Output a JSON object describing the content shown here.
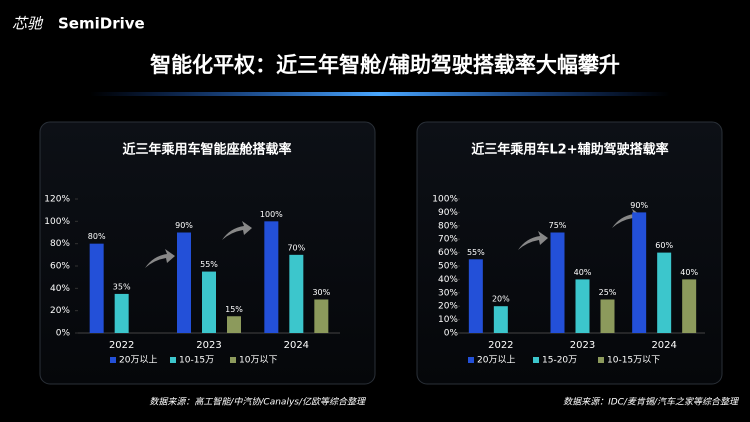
{
  "header": {
    "logo_cn": "芯驰",
    "logo_en": "SemiDrive",
    "title": "智能化平权：近三年智舱/辅助驾驶搭载率大幅攀升"
  },
  "chart_data": [
    {
      "type": "bar",
      "title": "近三年乘用车智能座舱搭载率",
      "categories": [
        "2022",
        "2023",
        "2024"
      ],
      "series": [
        {
          "name": "20万以上",
          "color": "#2350d8",
          "values": [
            80,
            90,
            100
          ],
          "value_labels": [
            "80%",
            "90%",
            "100%"
          ]
        },
        {
          "name": "10-15万",
          "color": "#3cc6cc",
          "values": [
            35,
            55,
            70
          ],
          "value_labels": [
            "35%",
            "55%",
            "70%"
          ]
        },
        {
          "name": "10万以下",
          "color": "#8c9a5c",
          "values": [
            null,
            15,
            30
          ],
          "value_labels": [
            null,
            "15%",
            "30%"
          ]
        }
      ],
      "ylim": [
        0,
        120
      ],
      "yticks": [
        {
          "value": 0,
          "label": "0%"
        },
        {
          "value": 20,
          "label": "20%"
        },
        {
          "value": 40,
          "label": "40%"
        },
        {
          "value": 60,
          "label": "60%"
        },
        {
          "value": 80,
          "label": "80%"
        },
        {
          "value": 100,
          "label": "100%"
        },
        {
          "value": 120,
          "label": "120%"
        }
      ],
      "grid": false,
      "source": "数据来源：高工智能/中汽协/Canalys/亿欧等综合整理"
    },
    {
      "type": "bar",
      "title": "近三年乘用车L2+辅助驾驶搭载率",
      "categories": [
        "2022",
        "2023",
        "2024"
      ],
      "series": [
        {
          "name": "20万以上",
          "color": "#2350d8",
          "values": [
            55,
            75,
            90
          ],
          "value_labels": [
            "55%",
            "75%",
            "90%"
          ]
        },
        {
          "name": "15-20万",
          "color": "#3cc6cc",
          "values": [
            20,
            40,
            60
          ],
          "value_labels": [
            "20%",
            "40%",
            "60%"
          ]
        },
        {
          "name": "10-15万以下",
          "color": "#8c9a5c",
          "values": [
            null,
            25,
            40
          ],
          "value_labels": [
            null,
            "25%",
            "40%"
          ]
        }
      ],
      "ylim": [
        0,
        100
      ],
      "yticks": [
        {
          "value": 0,
          "label": "0%"
        },
        {
          "value": 10,
          "label": "10%"
        },
        {
          "value": 20,
          "label": "20%"
        },
        {
          "value": 30,
          "label": "30%"
        },
        {
          "value": 40,
          "label": "40%"
        },
        {
          "value": 50,
          "label": "50%"
        },
        {
          "value": 60,
          "label": "60%"
        },
        {
          "value": 70,
          "label": "70%"
        },
        {
          "value": 80,
          "label": "80%"
        },
        {
          "value": 90,
          "label": "90%"
        },
        {
          "value": 100,
          "label": "100%"
        }
      ],
      "grid": false,
      "source": "数据来源：IDC/麦肯锡/汽车之家等综合整理"
    }
  ]
}
